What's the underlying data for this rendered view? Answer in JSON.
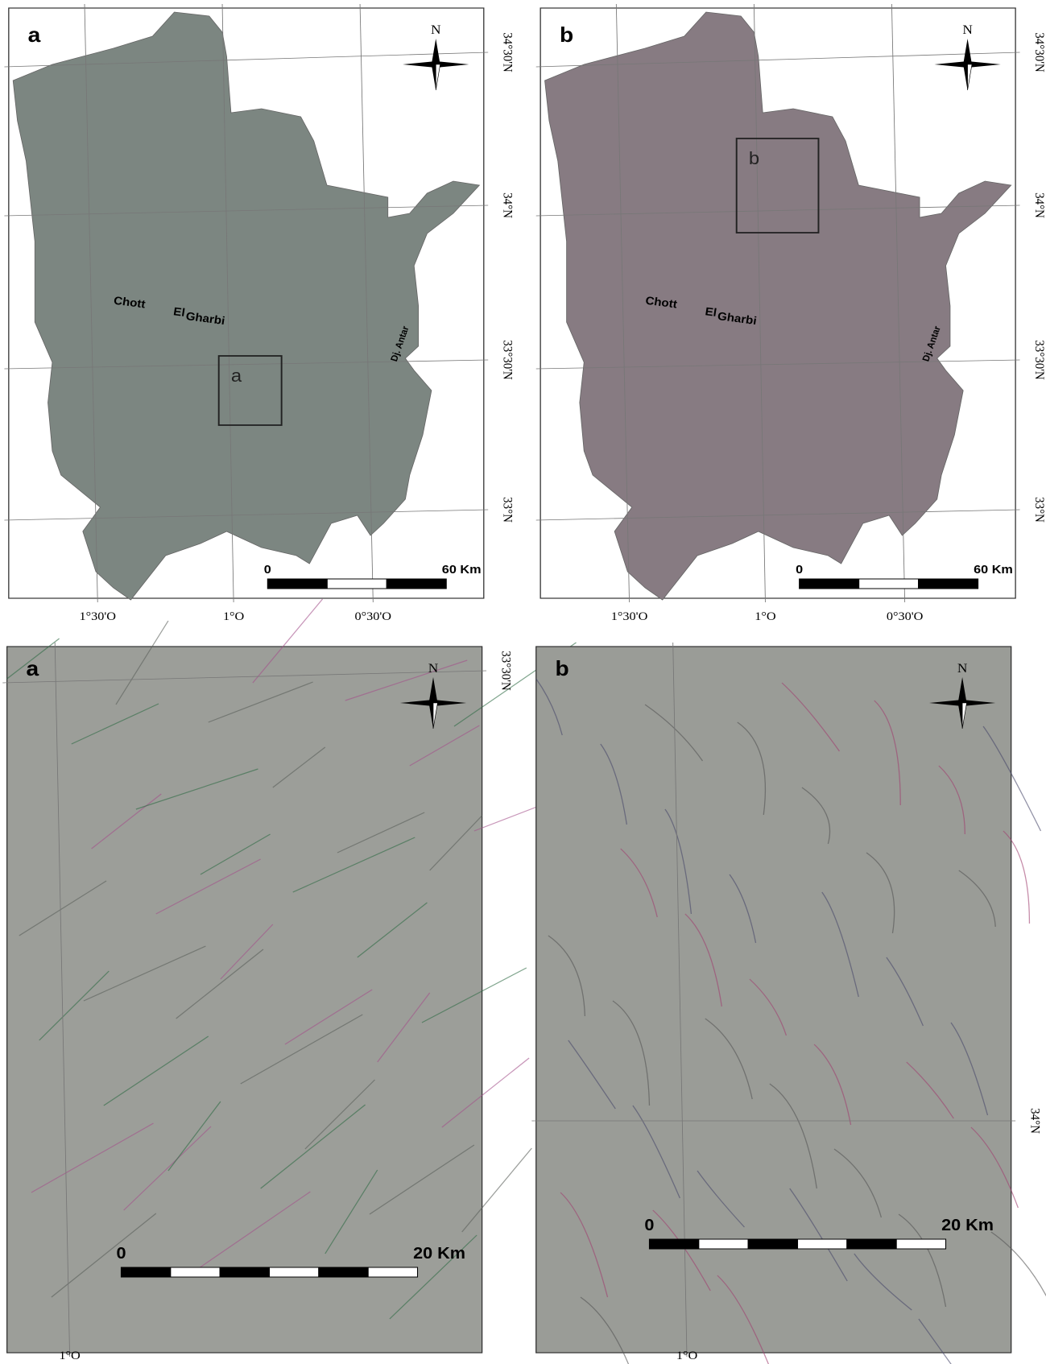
{
  "panels": [
    {
      "label": "a",
      "north": "N",
      "lat_labels": [
        "34°30'N",
        "34°N",
        "33°30'N",
        "33°N"
      ],
      "lon_labels": [
        "1°30'O",
        "1°O",
        "0°30'O"
      ],
      "places": [
        "Chott",
        "El",
        "Gharbi",
        "Dj. Antar"
      ],
      "inset_label": "a",
      "scale_labels": [
        "0",
        "60 Km"
      ]
    },
    {
      "label": "b",
      "north": "N",
      "lat_labels": [
        "34°30'N",
        "34°N",
        "33°30'N",
        "33°N"
      ],
      "lon_labels": [
        "1°30'O",
        "1°O",
        "0°30'O"
      ],
      "places": [
        "Chott",
        "El",
        "Gharbi",
        "Dj. Antar"
      ],
      "inset_label": "b",
      "scale_labels": [
        "0",
        "60 Km"
      ]
    },
    {
      "label": "a",
      "north": "N",
      "lat_labels": [
        "33°30'N"
      ],
      "lon_labels": [
        "1°O"
      ],
      "scale_labels": [
        "0",
        "20 Km"
      ]
    },
    {
      "label": "b",
      "north": "N",
      "lat_labels": [
        "34°N"
      ],
      "lon_labels": [
        "1°O"
      ],
      "scale_labels": [
        "0",
        "20 Km"
      ]
    }
  ]
}
